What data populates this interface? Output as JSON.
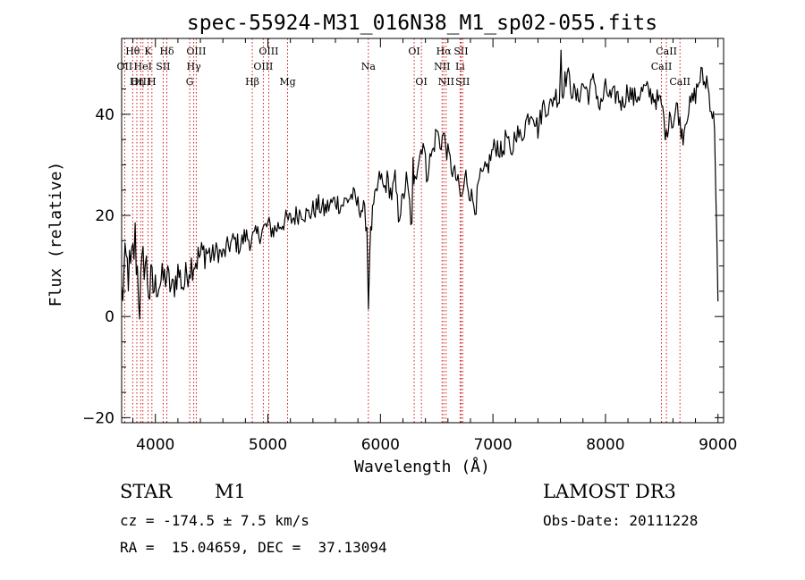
{
  "chart_data": {
    "type": "line",
    "title": "spec-55924-M31_016N38_M1_sp02-055.fits",
    "xlabel": "Wavelength (Å)",
    "ylabel": "Flux (relative)",
    "xlim": [
      3700,
      9050
    ],
    "ylim": [
      -21,
      55
    ],
    "x_ticks": [
      4000,
      5000,
      6000,
      7000,
      8000,
      9000
    ],
    "y_ticks": [
      -20,
      0,
      20,
      40
    ],
    "series": [
      {
        "name": "flux",
        "x": [
          3700,
          3740,
          3780,
          3820,
          3860,
          3900,
          3950,
          4000,
          4050,
          4100,
          4150,
          4200,
          4250,
          4300,
          4350,
          4400,
          4450,
          4500,
          4550,
          4600,
          4650,
          4700,
          4750,
          4800,
          4850,
          4900,
          4950,
          5000,
          5050,
          5100,
          5150,
          5200,
          5250,
          5300,
          5350,
          5400,
          5450,
          5500,
          5550,
          5600,
          5650,
          5700,
          5750,
          5800,
          5850,
          5880,
          5893,
          5905,
          5930,
          5960,
          6000,
          6030,
          6060,
          6100,
          6130,
          6160,
          6200,
          6230,
          6260,
          6280,
          6290,
          6298,
          6305,
          6320,
          6350,
          6380,
          6410,
          6440,
          6470,
          6500,
          6530,
          6560,
          6600,
          6640,
          6680,
          6720,
          6760,
          6790,
          6820,
          6850,
          6880,
          6920,
          6960,
          7000,
          7040,
          7080,
          7120,
          7160,
          7200,
          7250,
          7300,
          7350,
          7400,
          7450,
          7500,
          7550,
          7590,
          7605,
          7615,
          7630,
          7660,
          7700,
          7750,
          7800,
          7850,
          7900,
          7950,
          8000,
          8050,
          8100,
          8150,
          8200,
          8250,
          8300,
          8350,
          8400,
          8450,
          8498,
          8520,
          8542,
          8570,
          8600,
          8640,
          8662,
          8690,
          8720,
          8760,
          8800,
          8850,
          8880,
          8900,
          8920,
          8950,
          8970,
          9000
        ],
        "values": [
          4,
          10,
          8,
          15,
          3,
          12,
          5,
          6,
          7,
          8,
          5,
          9,
          6,
          10,
          11,
          12,
          13,
          12,
          13,
          12,
          14,
          15,
          14,
          16,
          15,
          16,
          17,
          18,
          17,
          18,
          19,
          19,
          20,
          21,
          20,
          21,
          22,
          21,
          22,
          23,
          22,
          23,
          24,
          22,
          21,
          18,
          2,
          14,
          20,
          24,
          28,
          25,
          27,
          24,
          27,
          20,
          23,
          27,
          22,
          17,
          30,
          25,
          29,
          29,
          32,
          35,
          28,
          31,
          33,
          37,
          34,
          36,
          32,
          29,
          27,
          23,
          28,
          25,
          23,
          22,
          27,
          28,
          30,
          33,
          34,
          32,
          36,
          31,
          37,
          35,
          39,
          41,
          37,
          42,
          41,
          44,
          43,
          53,
          44,
          46,
          48,
          45,
          43,
          46,
          44,
          47,
          41,
          45,
          43,
          44,
          42,
          45,
          43,
          44,
          45,
          44,
          43,
          42,
          39,
          35,
          41,
          38,
          42,
          38,
          36,
          40,
          42,
          44,
          48,
          46,
          47,
          44,
          40,
          38,
          3
        ]
      }
    ],
    "line_markers": [
      {
        "name": "Hθ",
        "x": 3798,
        "row": 1
      },
      {
        "name": "OII",
        "x": 3727,
        "row": 2
      },
      {
        "name": "OIII",
        "x": 3869,
        "row": 3
      },
      {
        "name": "Hη",
        "x": 3835,
        "row": 3
      },
      {
        "name": "K",
        "x": 3934,
        "row": 1
      },
      {
        "name": "HeI",
        "x": 3889,
        "row": 2
      },
      {
        "name": "H",
        "x": 3969,
        "row": 3
      },
      {
        "name": "SII",
        "x": 4069,
        "row": 2
      },
      {
        "name": "Hδ",
        "x": 4102,
        "row": 1
      },
      {
        "name": "OIII",
        "x": 4363,
        "row": 1
      },
      {
        "name": "Hγ",
        "x": 4341,
        "row": 2
      },
      {
        "name": "G",
        "x": 4305,
        "row": 3
      },
      {
        "name": "Hβ",
        "x": 4861,
        "row": 3
      },
      {
        "name": "OIII",
        "x": 5007,
        "row": 1
      },
      {
        "name": "OIII",
        "x": 4959,
        "row": 2
      },
      {
        "name": "Mg",
        "x": 5175,
        "row": 3
      },
      {
        "name": "Na",
        "x": 5893,
        "row": 2
      },
      {
        "name": "OI",
        "x": 6300,
        "row": 1
      },
      {
        "name": "OI",
        "x": 6364,
        "row": 3
      },
      {
        "name": "Hα",
        "x": 6563,
        "row": 1
      },
      {
        "name": "NII",
        "x": 6548,
        "row": 2
      },
      {
        "name": "NII",
        "x": 6584,
        "row": 3
      },
      {
        "name": "SII",
        "x": 6717,
        "row": 1
      },
      {
        "name": "Li",
        "x": 6708,
        "row": 2
      },
      {
        "name": "SII",
        "x": 6731,
        "row": 3
      },
      {
        "name": "CaII",
        "x": 8542,
        "row": 1
      },
      {
        "name": "CaII",
        "x": 8498,
        "row": 2
      },
      {
        "name": "CaII",
        "x": 8662,
        "row": 3
      }
    ]
  },
  "info": {
    "class_label": "STAR",
    "subclass": "M1",
    "survey": "LAMOST DR3",
    "cz": "cz = -174.5 ± 7.5 km/s",
    "obs_date": "Obs-Date: 20111228",
    "coords": "RA =  15.04659, DEC =  37.13094"
  }
}
